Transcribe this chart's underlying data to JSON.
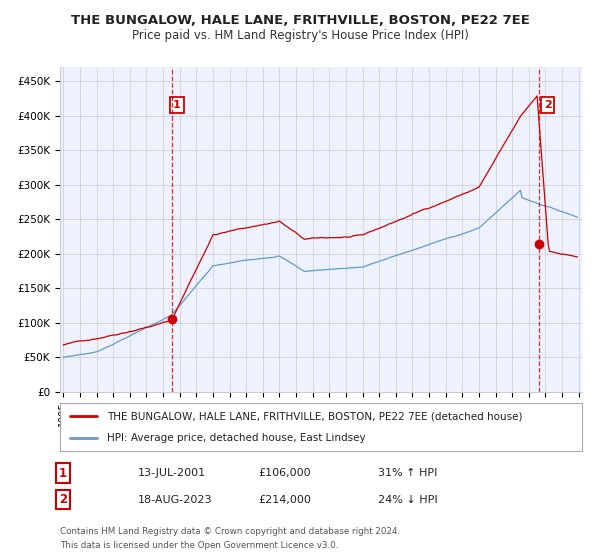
{
  "title": "THE BUNGALOW, HALE LANE, FRITHVILLE, BOSTON, PE22 7EE",
  "subtitle": "Price paid vs. HM Land Registry's House Price Index (HPI)",
  "ylabel_ticks": [
    "£0",
    "£50K",
    "£100K",
    "£150K",
    "£200K",
    "£250K",
    "£300K",
    "£350K",
    "£400K",
    "£450K"
  ],
  "ytick_values": [
    0,
    50000,
    100000,
    150000,
    200000,
    250000,
    300000,
    350000,
    400000,
    450000
  ],
  "ylim": [
    0,
    470000
  ],
  "xlim_start": 1994.8,
  "xlim_end": 2026.2,
  "red_line_color": "#cc0000",
  "blue_line_color": "#6699cc",
  "marker1_date": 2001.54,
  "marker1_value": 106000,
  "marker2_date": 2023.63,
  "marker2_value": 214000,
  "legend_line1": "THE BUNGALOW, HALE LANE, FRITHVILLE, BOSTON, PE22 7EE (detached house)",
  "legend_line2": "HPI: Average price, detached house, East Lindsey",
  "annotation1_label": "1",
  "annotation1_date": "13-JUL-2001",
  "annotation1_price": "£106,000",
  "annotation1_hpi": "31% ↑ HPI",
  "annotation2_label": "2",
  "annotation2_date": "18-AUG-2023",
  "annotation2_price": "£214,000",
  "annotation2_hpi": "24% ↓ HPI",
  "footer1": "Contains HM Land Registry data © Crown copyright and database right 2024.",
  "footer2": "This data is licensed under the Open Government Licence v3.0.",
  "background_color": "#ffffff",
  "plot_bg_color": "#eef2ff",
  "grid_color": "#cccccc"
}
